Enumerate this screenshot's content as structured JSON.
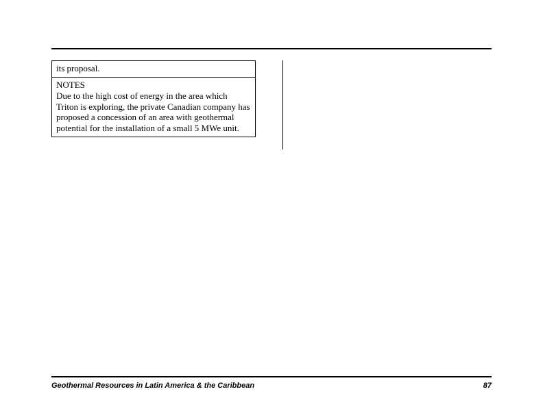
{
  "table": {
    "row1": "its proposal.",
    "notes_title": "NOTES",
    "notes_body": "Due to the high cost of energy in the area which Triton is exploring, the private Canadian company has proposed a concession of an area with geothermal potential for the installation of a small 5 MWe unit."
  },
  "footer": {
    "title": "Geothermal Resources in Latin America & the Caribbean",
    "page": "87"
  }
}
